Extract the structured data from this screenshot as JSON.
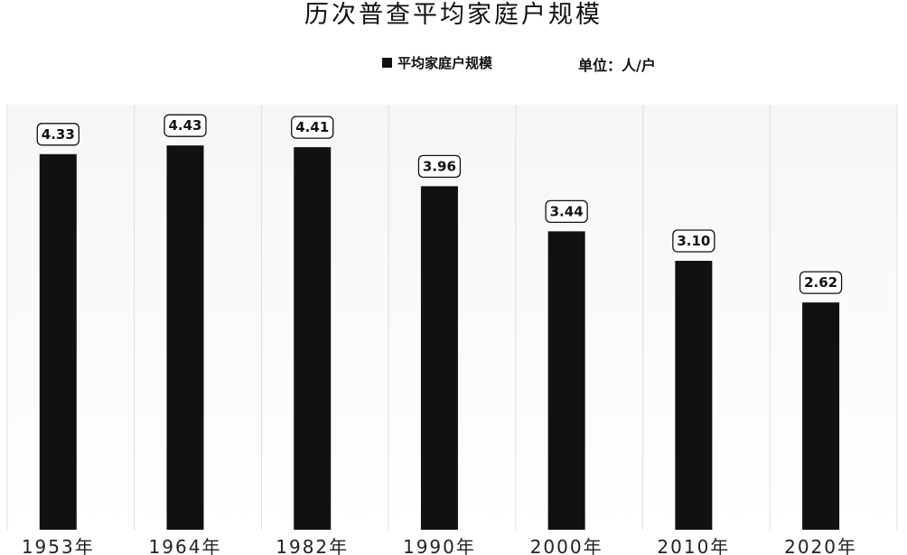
{
  "chart_data": {
    "type": "bar",
    "title": "历次普查平均家庭户规模",
    "legend": {
      "label": "平均家庭户规模",
      "placement": "top-center"
    },
    "unit_label": "单位：人/户",
    "categories": [
      "1953年",
      "1964年",
      "1982年",
      "1990年",
      "2000年",
      "2010年",
      "2020年"
    ],
    "series": [
      {
        "name": "平均家庭户规模",
        "values": [
          4.33,
          4.43,
          4.41,
          3.96,
          3.44,
          3.1,
          2.62
        ],
        "color": "#111111"
      }
    ],
    "data_labels": [
      "4.33",
      "4.43",
      "4.41",
      "3.96",
      "3.44",
      "3.10",
      "2.62"
    ],
    "ylim": [
      0,
      4.9
    ],
    "grid": false,
    "xlabel": "",
    "ylabel": ""
  }
}
